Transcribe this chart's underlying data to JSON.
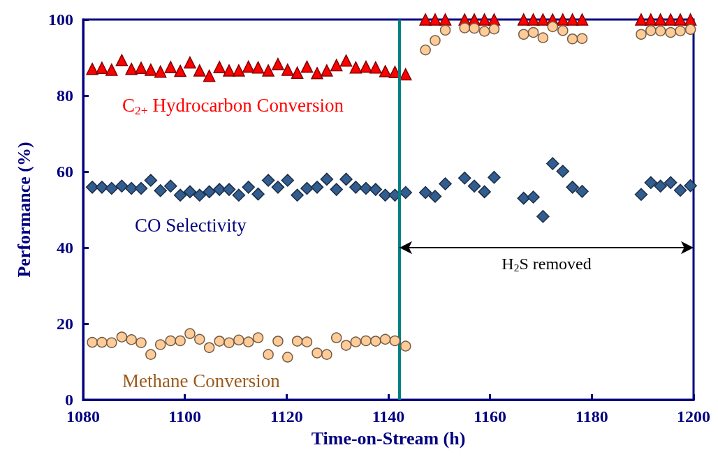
{
  "chart_data": {
    "type": "scatter",
    "xlabel": "Time-on-Stream (h)",
    "ylabel": "Performance (%)",
    "x": [
      1081.8,
      1083.7,
      1085.6,
      1087.6,
      1089.5,
      1091.4,
      1093.3,
      1095.2,
      1097.2,
      1099.1,
      1101.0,
      1102.9,
      1104.8,
      1106.8,
      1108.7,
      1110.6,
      1112.5,
      1114.4,
      1116.4,
      1118.3,
      1120.2,
      1122.1,
      1124.0,
      1126.0,
      1127.9,
      1129.8,
      1131.7,
      1133.6,
      1135.6,
      1137.5,
      1139.4,
      1141.3,
      1143.4,
      1147.3,
      1149.2,
      1151.2,
      1155.0,
      1156.9,
      1158.9,
      1160.8,
      1166.6,
      1168.5,
      1170.4,
      1172.3,
      1174.3,
      1176.2,
      1178.1,
      1189.7,
      1191.6,
      1193.5,
      1195.5,
      1197.4,
      1199.4
    ],
    "series": [
      {
        "name": "C$_{2+}$ Hydrocarbon Conversion",
        "color": "#ff0000",
        "marker": "triangle",
        "values": [
          87,
          87.3,
          86.8,
          89.3,
          87,
          87.3,
          86.8,
          86.3,
          87.5,
          86.5,
          88.7,
          86.6,
          85.2,
          87.5,
          86.6,
          86.6,
          87.6,
          87.4,
          86.6,
          88.3,
          86.8,
          86,
          87.6,
          85.9,
          86.6,
          88,
          89.2,
          87.4,
          87.6,
          87.4,
          86.4,
          86.2,
          85.6,
          100,
          100,
          100,
          100,
          100,
          100,
          100,
          100,
          100,
          100,
          100,
          100,
          100,
          100,
          100,
          100,
          100,
          100,
          100,
          100
        ]
      },
      {
        "name": "CO Selectivity",
        "color": "#335c8f",
        "marker": "diamond",
        "values": [
          55.9,
          55.9,
          55.6,
          56.2,
          55.6,
          55.6,
          57.7,
          55.0,
          56.2,
          53.8,
          54.7,
          53.8,
          54.7,
          55.3,
          55.3,
          53.8,
          55.9,
          54.1,
          57.7,
          55.9,
          57.7,
          53.8,
          55.6,
          55.9,
          58.0,
          55.3,
          58.0,
          55.9,
          55.6,
          55.3,
          53.8,
          53.8,
          54.5,
          54.5,
          53.5,
          56.8,
          58.3,
          56.2,
          54.7,
          58.5,
          53.0,
          53.3,
          48.2,
          62.1,
          60.1,
          55.9,
          54.8,
          54.0,
          57.1,
          56.2,
          57.1,
          55.1,
          56.3
        ]
      },
      {
        "name": "Methane Conversion",
        "color": "#ffcc99",
        "marker": "circle",
        "values": [
          15.1,
          15.1,
          15.0,
          16.5,
          15.8,
          15.0,
          11.9,
          14.5,
          15.5,
          15.5,
          17.4,
          15.9,
          13.7,
          15.4,
          15.0,
          15.7,
          15.2,
          16.3,
          11.9,
          15.4,
          11.2,
          15.4,
          15.2,
          12.3,
          11.9,
          16.3,
          14.3,
          15.2,
          15.5,
          15.4,
          15.9,
          15.5,
          14.1,
          92.0,
          94.5,
          97.2,
          97.8,
          97.7,
          96.9,
          97.5,
          96.1,
          96.6,
          95.2,
          98.1,
          97.1,
          94.9,
          95.0,
          96.1,
          97.1,
          97.0,
          96.6,
          97.0,
          97.4
        ]
      }
    ],
    "xlim": [
      1080,
      1200
    ],
    "xticks": [
      1080,
      1100,
      1120,
      1140,
      1160,
      1180,
      1200
    ],
    "ylim": [
      0,
      100
    ],
    "yticks": [
      0,
      20,
      40,
      60,
      80,
      100
    ],
    "ref_lines": [
      {
        "axis": "x",
        "value": 1142.2,
        "color": "#008080"
      }
    ],
    "annotations": [
      "H$_{2}$S removed"
    ],
    "grid": false,
    "legend": false
  }
}
